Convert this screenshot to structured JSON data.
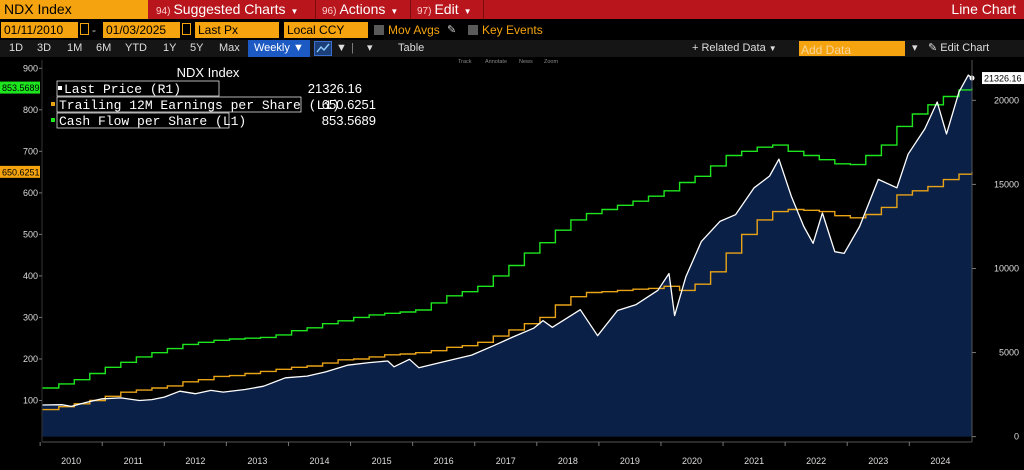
{
  "topbar": {
    "ticker": "NDX Index",
    "menus": [
      {
        "num": "94)",
        "label": "Suggested Charts"
      },
      {
        "num": "96)",
        "label": "Actions"
      },
      {
        "num": "97)",
        "label": "Edit"
      }
    ],
    "chart_type": "Line Chart"
  },
  "controls": {
    "start_date": "01/11/2010",
    "end_date": "01/03/2025",
    "field": "Last Px",
    "currency": "Local CCY",
    "mov_avgs": "Mov Avgs",
    "key_events": "Key Events"
  },
  "toolbar": {
    "ranges": [
      "1D",
      "3D",
      "1M",
      "6M",
      "YTD",
      "1Y",
      "5Y",
      "Max"
    ],
    "frequency": "Weekly",
    "table": "Table",
    "related_data": "Related Data",
    "add_data_placeholder": "Add Data",
    "edit_chart": "Edit Chart"
  },
  "chart_tools": [
    "Track",
    "Annotate",
    "News",
    "Zoom"
  ],
  "colors": {
    "last_price": "#ffffff",
    "eps": "#e8a317",
    "cfps": "#1ee61e",
    "area_fill": "#0b2047",
    "brand_orange": "#f5a30f",
    "top_bar": "#b8151c",
    "active_tab": "#1c59c2"
  },
  "chart_data": {
    "type": "line",
    "title": "NDX Index",
    "x_ticks": [
      "2010",
      "2011",
      "2012",
      "2013",
      "2014",
      "2015",
      "2016",
      "2017",
      "2018",
      "2019",
      "2020",
      "2021",
      "2022",
      "2023",
      "2024"
    ],
    "x_range": [
      2010.03,
      2025.01
    ],
    "left_axis": {
      "ticks": [
        100,
        200,
        300,
        400,
        500,
        600,
        700,
        800,
        900
      ],
      "range": [
        0,
        920
      ]
    },
    "right_axis": {
      "ticks": [
        0,
        5000,
        10000,
        15000,
        20000
      ],
      "tick_labels": [
        "0",
        "5000",
        "10000",
        "15000",
        "20000"
      ],
      "range": [
        -320,
        22400
      ]
    },
    "grid": false,
    "legend_position": "top-left",
    "series": [
      {
        "name": "Last Price (R1)",
        "axis": "right",
        "last_value": "21326.16",
        "area": true,
        "points": [
          [
            2010.03,
            1880
          ],
          [
            2010.35,
            1900
          ],
          [
            2010.5,
            1800
          ],
          [
            2010.75,
            2050
          ],
          [
            2011.0,
            2250
          ],
          [
            2011.3,
            2300
          ],
          [
            2011.6,
            2150
          ],
          [
            2011.8,
            2200
          ],
          [
            2012.0,
            2350
          ],
          [
            2012.25,
            2700
          ],
          [
            2012.5,
            2550
          ],
          [
            2012.75,
            2750
          ],
          [
            2012.95,
            2650
          ],
          [
            2013.3,
            2800
          ],
          [
            2013.6,
            3000
          ],
          [
            2013.95,
            3500
          ],
          [
            2014.3,
            3600
          ],
          [
            2014.6,
            3850
          ],
          [
            2014.95,
            4250
          ],
          [
            2015.3,
            4400
          ],
          [
            2015.6,
            4500
          ],
          [
            2015.7,
            4150
          ],
          [
            2015.95,
            4600
          ],
          [
            2016.1,
            4100
          ],
          [
            2016.5,
            4450
          ],
          [
            2016.95,
            4850
          ],
          [
            2017.3,
            5400
          ],
          [
            2017.6,
            5900
          ],
          [
            2017.95,
            6450
          ],
          [
            2018.1,
            6900
          ],
          [
            2018.25,
            6500
          ],
          [
            2018.7,
            7550
          ],
          [
            2018.98,
            6000
          ],
          [
            2019.3,
            7500
          ],
          [
            2019.6,
            7850
          ],
          [
            2019.95,
            8700
          ],
          [
            2020.13,
            9700
          ],
          [
            2020.22,
            7200
          ],
          [
            2020.4,
            9500
          ],
          [
            2020.65,
            11600
          ],
          [
            2020.95,
            12800
          ],
          [
            2021.2,
            13200
          ],
          [
            2021.5,
            14800
          ],
          [
            2021.75,
            15500
          ],
          [
            2021.9,
            16500
          ],
          [
            2022.1,
            14300
          ],
          [
            2022.3,
            12500
          ],
          [
            2022.45,
            11500
          ],
          [
            2022.6,
            13300
          ],
          [
            2022.8,
            11000
          ],
          [
            2022.95,
            10900
          ],
          [
            2023.2,
            12500
          ],
          [
            2023.5,
            15300
          ],
          [
            2023.8,
            14800
          ],
          [
            2023.98,
            16800
          ],
          [
            2024.25,
            18300
          ],
          [
            2024.45,
            19900
          ],
          [
            2024.6,
            18000
          ],
          [
            2024.8,
            20500
          ],
          [
            2024.95,
            21500
          ],
          [
            2025.01,
            21326
          ]
        ]
      },
      {
        "name": "Trailing 12M Earnings per Share (L1)",
        "axis": "left",
        "last_value": "650.6251",
        "points": [
          [
            2010.03,
            78
          ],
          [
            2010.3,
            85
          ],
          [
            2010.55,
            92
          ],
          [
            2010.8,
            100
          ],
          [
            2011.05,
            110
          ],
          [
            2011.3,
            120
          ],
          [
            2011.55,
            125
          ],
          [
            2011.8,
            130
          ],
          [
            2012.05,
            135
          ],
          [
            2012.3,
            145
          ],
          [
            2012.55,
            150
          ],
          [
            2012.8,
            158
          ],
          [
            2013.05,
            160
          ],
          [
            2013.3,
            165
          ],
          [
            2013.55,
            170
          ],
          [
            2013.8,
            175
          ],
          [
            2014.05,
            180
          ],
          [
            2014.3,
            183
          ],
          [
            2014.55,
            190
          ],
          [
            2014.8,
            198
          ],
          [
            2015.05,
            200
          ],
          [
            2015.3,
            205
          ],
          [
            2015.55,
            210
          ],
          [
            2015.8,
            212
          ],
          [
            2016.05,
            215
          ],
          [
            2016.3,
            220
          ],
          [
            2016.55,
            228
          ],
          [
            2016.8,
            232
          ],
          [
            2017.05,
            240
          ],
          [
            2017.3,
            255
          ],
          [
            2017.55,
            270
          ],
          [
            2017.8,
            285
          ],
          [
            2018.05,
            300
          ],
          [
            2018.3,
            330
          ],
          [
            2018.55,
            350
          ],
          [
            2018.8,
            360
          ],
          [
            2019.05,
            362
          ],
          [
            2019.3,
            365
          ],
          [
            2019.55,
            368
          ],
          [
            2019.8,
            370
          ],
          [
            2020.05,
            375
          ],
          [
            2020.3,
            365
          ],
          [
            2020.55,
            380
          ],
          [
            2020.8,
            410
          ],
          [
            2021.05,
            455
          ],
          [
            2021.3,
            500
          ],
          [
            2021.55,
            535
          ],
          [
            2021.8,
            555
          ],
          [
            2022.05,
            560
          ],
          [
            2022.3,
            558
          ],
          [
            2022.55,
            555
          ],
          [
            2022.8,
            545
          ],
          [
            2023.05,
            540
          ],
          [
            2023.3,
            548
          ],
          [
            2023.55,
            565
          ],
          [
            2023.8,
            595
          ],
          [
            2024.05,
            605
          ],
          [
            2024.3,
            615
          ],
          [
            2024.55,
            632
          ],
          [
            2024.8,
            645
          ],
          [
            2025.01,
            650.6
          ]
        ]
      },
      {
        "name": "Cash Flow per Share (L1)",
        "axis": "left",
        "last_value": "853.5689",
        "points": [
          [
            2010.03,
            130
          ],
          [
            2010.3,
            140
          ],
          [
            2010.55,
            150
          ],
          [
            2010.8,
            165
          ],
          [
            2011.05,
            180
          ],
          [
            2011.3,
            192
          ],
          [
            2011.55,
            205
          ],
          [
            2011.8,
            215
          ],
          [
            2012.05,
            225
          ],
          [
            2012.3,
            235
          ],
          [
            2012.55,
            240
          ],
          [
            2012.8,
            245
          ],
          [
            2013.05,
            248
          ],
          [
            2013.3,
            250
          ],
          [
            2013.55,
            252
          ],
          [
            2013.8,
            258
          ],
          [
            2014.05,
            268
          ],
          [
            2014.3,
            275
          ],
          [
            2014.55,
            285
          ],
          [
            2014.8,
            292
          ],
          [
            2015.05,
            300
          ],
          [
            2015.3,
            306
          ],
          [
            2015.55,
            310
          ],
          [
            2015.8,
            313
          ],
          [
            2016.05,
            318
          ],
          [
            2016.3,
            335
          ],
          [
            2016.55,
            352
          ],
          [
            2016.8,
            362
          ],
          [
            2017.05,
            375
          ],
          [
            2017.3,
            400
          ],
          [
            2017.55,
            425
          ],
          [
            2017.8,
            455
          ],
          [
            2018.05,
            480
          ],
          [
            2018.3,
            510
          ],
          [
            2018.55,
            535
          ],
          [
            2018.8,
            550
          ],
          [
            2019.05,
            560
          ],
          [
            2019.3,
            570
          ],
          [
            2019.55,
            580
          ],
          [
            2019.8,
            592
          ],
          [
            2020.05,
            605
          ],
          [
            2020.3,
            625
          ],
          [
            2020.55,
            640
          ],
          [
            2020.8,
            665
          ],
          [
            2021.05,
            690
          ],
          [
            2021.3,
            700
          ],
          [
            2021.55,
            710
          ],
          [
            2021.8,
            715
          ],
          [
            2022.05,
            700
          ],
          [
            2022.3,
            690
          ],
          [
            2022.55,
            680
          ],
          [
            2022.8,
            670
          ],
          [
            2023.05,
            668
          ],
          [
            2023.3,
            690
          ],
          [
            2023.55,
            715
          ],
          [
            2023.8,
            760
          ],
          [
            2024.05,
            790
          ],
          [
            2024.3,
            812
          ],
          [
            2024.55,
            832
          ],
          [
            2024.8,
            848
          ],
          [
            2025.01,
            853.6
          ]
        ]
      }
    ]
  }
}
